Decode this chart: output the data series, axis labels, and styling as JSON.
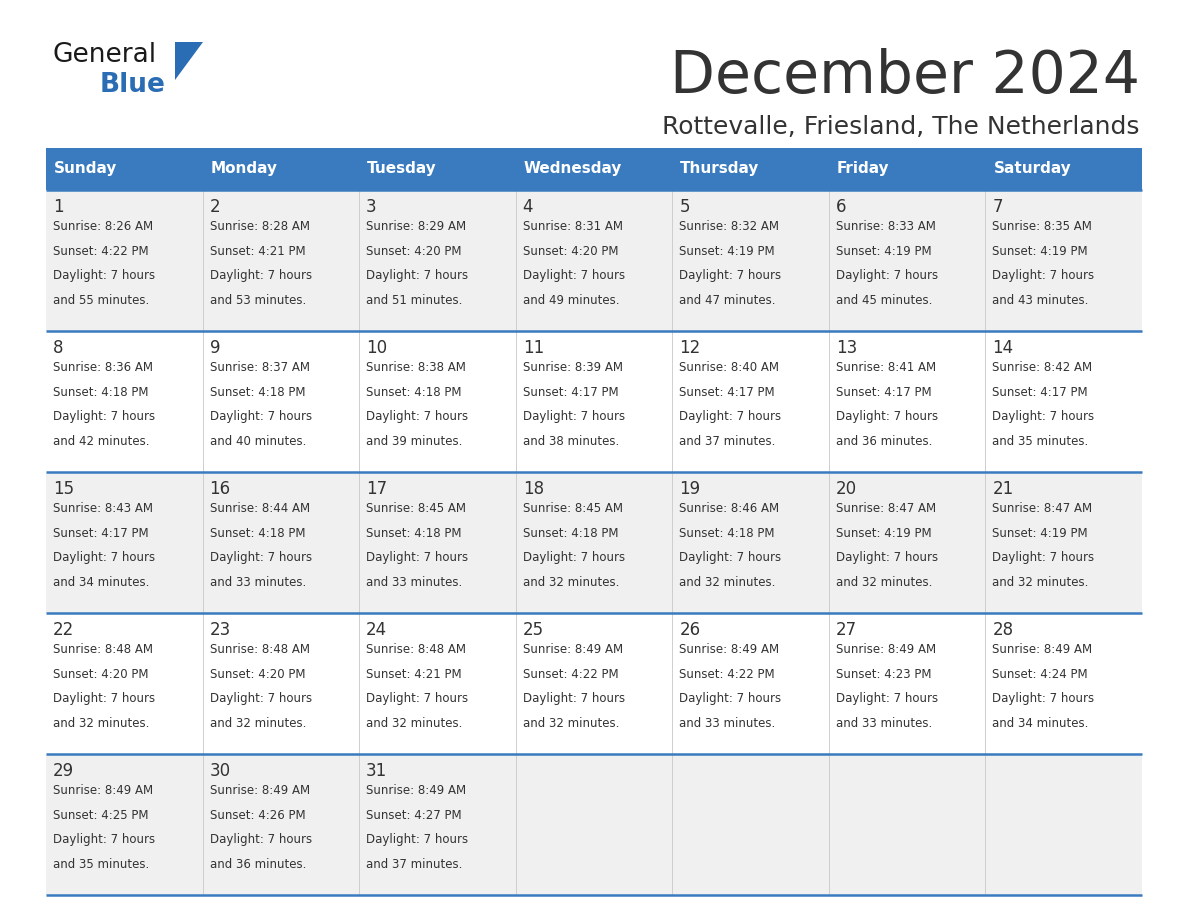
{
  "title": "December 2024",
  "subtitle": "Rottevalle, Friesland, The Netherlands",
  "days_of_week": [
    "Sunday",
    "Monday",
    "Tuesday",
    "Wednesday",
    "Thursday",
    "Friday",
    "Saturday"
  ],
  "header_bg": "#3a7bbf",
  "header_text_color": "#ffffff",
  "row_bg_odd": "#f0f0f0",
  "row_bg_even": "#ffffff",
  "separator_color": "#3a7bbf",
  "text_color": "#333333",
  "calendar_data": [
    [
      {
        "day": 1,
        "sunrise": "8:26 AM",
        "sunset": "4:22 PM",
        "daylight": "7 hours and 55 minutes"
      },
      {
        "day": 2,
        "sunrise": "8:28 AM",
        "sunset": "4:21 PM",
        "daylight": "7 hours and 53 minutes"
      },
      {
        "day": 3,
        "sunrise": "8:29 AM",
        "sunset": "4:20 PM",
        "daylight": "7 hours and 51 minutes"
      },
      {
        "day": 4,
        "sunrise": "8:31 AM",
        "sunset": "4:20 PM",
        "daylight": "7 hours and 49 minutes"
      },
      {
        "day": 5,
        "sunrise": "8:32 AM",
        "sunset": "4:19 PM",
        "daylight": "7 hours and 47 minutes"
      },
      {
        "day": 6,
        "sunrise": "8:33 AM",
        "sunset": "4:19 PM",
        "daylight": "7 hours and 45 minutes"
      },
      {
        "day": 7,
        "sunrise": "8:35 AM",
        "sunset": "4:19 PM",
        "daylight": "7 hours and 43 minutes"
      }
    ],
    [
      {
        "day": 8,
        "sunrise": "8:36 AM",
        "sunset": "4:18 PM",
        "daylight": "7 hours and 42 minutes"
      },
      {
        "day": 9,
        "sunrise": "8:37 AM",
        "sunset": "4:18 PM",
        "daylight": "7 hours and 40 minutes"
      },
      {
        "day": 10,
        "sunrise": "8:38 AM",
        "sunset": "4:18 PM",
        "daylight": "7 hours and 39 minutes"
      },
      {
        "day": 11,
        "sunrise": "8:39 AM",
        "sunset": "4:17 PM",
        "daylight": "7 hours and 38 minutes"
      },
      {
        "day": 12,
        "sunrise": "8:40 AM",
        "sunset": "4:17 PM",
        "daylight": "7 hours and 37 minutes"
      },
      {
        "day": 13,
        "sunrise": "8:41 AM",
        "sunset": "4:17 PM",
        "daylight": "7 hours and 36 minutes"
      },
      {
        "day": 14,
        "sunrise": "8:42 AM",
        "sunset": "4:17 PM",
        "daylight": "7 hours and 35 minutes"
      }
    ],
    [
      {
        "day": 15,
        "sunrise": "8:43 AM",
        "sunset": "4:17 PM",
        "daylight": "7 hours and 34 minutes"
      },
      {
        "day": 16,
        "sunrise": "8:44 AM",
        "sunset": "4:18 PM",
        "daylight": "7 hours and 33 minutes"
      },
      {
        "day": 17,
        "sunrise": "8:45 AM",
        "sunset": "4:18 PM",
        "daylight": "7 hours and 33 minutes"
      },
      {
        "day": 18,
        "sunrise": "8:45 AM",
        "sunset": "4:18 PM",
        "daylight": "7 hours and 32 minutes"
      },
      {
        "day": 19,
        "sunrise": "8:46 AM",
        "sunset": "4:18 PM",
        "daylight": "7 hours and 32 minutes"
      },
      {
        "day": 20,
        "sunrise": "8:47 AM",
        "sunset": "4:19 PM",
        "daylight": "7 hours and 32 minutes"
      },
      {
        "day": 21,
        "sunrise": "8:47 AM",
        "sunset": "4:19 PM",
        "daylight": "7 hours and 32 minutes"
      }
    ],
    [
      {
        "day": 22,
        "sunrise": "8:48 AM",
        "sunset": "4:20 PM",
        "daylight": "7 hours and 32 minutes"
      },
      {
        "day": 23,
        "sunrise": "8:48 AM",
        "sunset": "4:20 PM",
        "daylight": "7 hours and 32 minutes"
      },
      {
        "day": 24,
        "sunrise": "8:48 AM",
        "sunset": "4:21 PM",
        "daylight": "7 hours and 32 minutes"
      },
      {
        "day": 25,
        "sunrise": "8:49 AM",
        "sunset": "4:22 PM",
        "daylight": "7 hours and 32 minutes"
      },
      {
        "day": 26,
        "sunrise": "8:49 AM",
        "sunset": "4:22 PM",
        "daylight": "7 hours and 33 minutes"
      },
      {
        "day": 27,
        "sunrise": "8:49 AM",
        "sunset": "4:23 PM",
        "daylight": "7 hours and 33 minutes"
      },
      {
        "day": 28,
        "sunrise": "8:49 AM",
        "sunset": "4:24 PM",
        "daylight": "7 hours and 34 minutes"
      }
    ],
    [
      {
        "day": 29,
        "sunrise": "8:49 AM",
        "sunset": "4:25 PM",
        "daylight": "7 hours and 35 minutes"
      },
      {
        "day": 30,
        "sunrise": "8:49 AM",
        "sunset": "4:26 PM",
        "daylight": "7 hours and 36 minutes"
      },
      {
        "day": 31,
        "sunrise": "8:49 AM",
        "sunset": "4:27 PM",
        "daylight": "7 hours and 37 minutes"
      },
      null,
      null,
      null,
      null
    ]
  ],
  "logo_color_general": "#1a1a1a",
  "logo_color_blue": "#2a6db5",
  "logo_triangle_color": "#2a6db5",
  "figsize": [
    11.88,
    9.18
  ],
  "dpi": 100
}
